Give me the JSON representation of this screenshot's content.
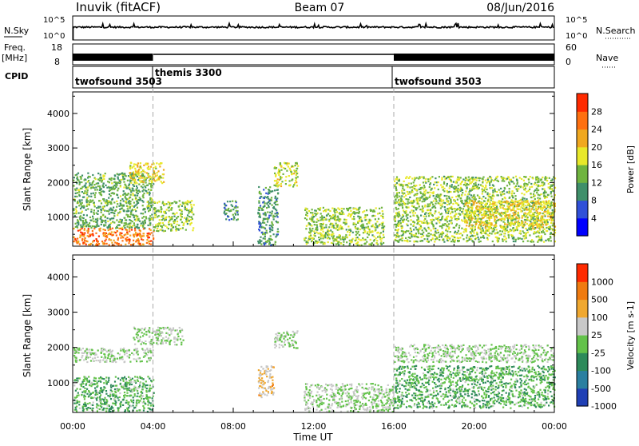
{
  "header": {
    "station": "Inuvik (fitACF)",
    "beam": "Beam 07",
    "date": "08/Jun/2016"
  },
  "top_panels": {
    "nsky_label": "N.Sky",
    "nsky_ticks": [
      "10^5",
      "10^0"
    ],
    "nsky_right_ticks": [
      "10^5",
      "10^0"
    ],
    "nsearch_label": "N.Search",
    "freq_label_line1": "Freq.",
    "freq_label_line2": "[MHz]",
    "freq_ticks": [
      "18",
      "8"
    ],
    "nave_ticks": [
      "60",
      "0"
    ],
    "nave_label": "Nave",
    "cpid_label": "CPID",
    "cpid_segments": [
      {
        "name": "twofsound 3503",
        "start_hour": 0,
        "end_hour": 4
      },
      {
        "name": "themis 3300",
        "start_hour": 4,
        "end_hour": 16
      },
      {
        "name": "twofsound 3503",
        "start_hour": 16,
        "end_hour": 24
      }
    ]
  },
  "axes": {
    "ylabel": "Slant Range [km]",
    "xlabel": "Time UT",
    "y_ticks": [
      "1000",
      "2000",
      "3000",
      "4000"
    ],
    "x_ticks": [
      "00:00",
      "04:00",
      "08:00",
      "12:00",
      "16:00",
      "20:00",
      "00:00"
    ]
  },
  "power_colorbar": {
    "label": "Power [dB]",
    "ticks": [
      "4",
      "8",
      "12",
      "16",
      "20",
      "24",
      "28"
    ],
    "colors": [
      "#0000ff",
      "#3050d8",
      "#3f8f6a",
      "#6fb43f",
      "#e8e82a",
      "#f0a820",
      "#ff7010",
      "#ff2a00"
    ]
  },
  "velocity_colorbar": {
    "label": "Velocity [m s-1]",
    "ticks": [
      "1000",
      "500",
      "100",
      "25",
      "-25",
      "-100",
      "-500",
      "-1000"
    ],
    "colors": [
      "#1f3fb5",
      "#2a7fa0",
      "#2d8a5a",
      "#63c24a",
      "#c8c8c8",
      "#f0a830",
      "#f07b10",
      "#ff2a00"
    ]
  },
  "chart_data": [
    {
      "type": "heatmap",
      "title": "Power",
      "xlabel": "Time UT",
      "ylabel": "Slant Range [km]",
      "xlim": [
        0,
        24
      ],
      "ylim": [
        180,
        4600
      ],
      "colorbar_range": [
        0,
        30
      ],
      "colorbar_label": "Power [dB]",
      "scatter_regions": [
        {
          "time_start": 0.0,
          "time_end": 4.0,
          "range_start": 200,
          "range_end": 700,
          "value": 24
        },
        {
          "time_start": 0.0,
          "time_end": 4.0,
          "range_start": 700,
          "range_end": 2300,
          "value": 12
        },
        {
          "time_start": 2.8,
          "time_end": 4.5,
          "range_start": 2000,
          "range_end": 2600,
          "value": 18
        },
        {
          "time_start": 4.0,
          "time_end": 6.0,
          "range_start": 600,
          "range_end": 1500,
          "value": 14
        },
        {
          "time_start": 7.5,
          "time_end": 8.2,
          "range_start": 900,
          "range_end": 1500,
          "value": 10
        },
        {
          "time_start": 9.2,
          "time_end": 10.2,
          "range_start": 200,
          "range_end": 1900,
          "value": 10
        },
        {
          "time_start": 10.0,
          "time_end": 11.2,
          "range_start": 1900,
          "range_end": 2600,
          "value": 16
        },
        {
          "time_start": 11.5,
          "time_end": 15.5,
          "range_start": 200,
          "range_end": 1300,
          "value": 14
        },
        {
          "time_start": 16.0,
          "time_end": 24.0,
          "range_start": 300,
          "range_end": 2200,
          "value": 14
        },
        {
          "time_start": 19.5,
          "time_end": 24.0,
          "range_start": 700,
          "range_end": 1500,
          "value": 18
        }
      ]
    },
    {
      "type": "heatmap",
      "title": "Velocity",
      "xlabel": "Time UT",
      "ylabel": "Slant Range [km]",
      "xlim": [
        0,
        24
      ],
      "ylim": [
        180,
        4600
      ],
      "colorbar_range": [
        -1000,
        1000
      ],
      "colorbar_label": "Velocity [m s-1]",
      "scatter_regions": [
        {
          "time_start": 0.0,
          "time_end": 4.0,
          "range_start": 200,
          "range_end": 1200,
          "value": -200
        },
        {
          "time_start": 0.0,
          "time_end": 4.0,
          "range_start": 1600,
          "range_end": 2000,
          "value": 0
        },
        {
          "time_start": 3.0,
          "time_end": 5.5,
          "range_start": 2100,
          "range_end": 2600,
          "value": 0
        },
        {
          "time_start": 9.2,
          "time_end": 10.0,
          "range_start": 600,
          "range_end": 1500,
          "value": 300
        },
        {
          "time_start": 10.0,
          "time_end": 11.2,
          "range_start": 2000,
          "range_end": 2500,
          "value": 0
        },
        {
          "time_start": 11.5,
          "time_end": 16.0,
          "range_start": 200,
          "range_end": 1000,
          "value": 0
        },
        {
          "time_start": 16.0,
          "time_end": 24.0,
          "range_start": 1600,
          "range_end": 2100,
          "value": 0
        },
        {
          "time_start": 16.0,
          "time_end": 24.0,
          "range_start": 300,
          "range_end": 1500,
          "value": -200
        }
      ]
    }
  ]
}
